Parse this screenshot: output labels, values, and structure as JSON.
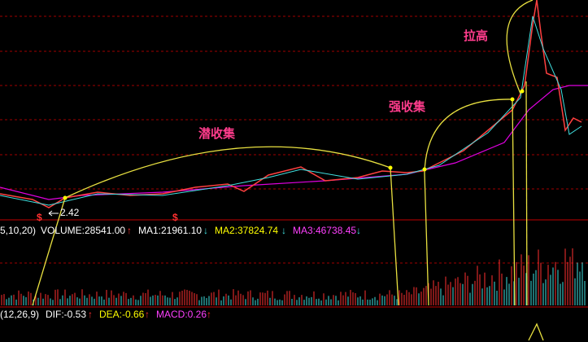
{
  "annotations": {
    "stage1": "潜收集",
    "stage2": "强收集",
    "stage3": "拉高",
    "low_marker": "2.42",
    "signal1": "$",
    "signal2": "$"
  },
  "volume_bar": {
    "params": "5,10,20)",
    "volume": "VOLUME:28541.00",
    "volume_arrow": "↑",
    "ma1": "MA1:21961.10",
    "ma1_arrow": "↓",
    "ma2": "MA2:37824.74",
    "ma2_arrow": "↓",
    "ma3": "MA3:46738.45",
    "ma3_arrow": "↓"
  },
  "macd_bar": {
    "params": "(12,26,9)",
    "dif": "DIF:-0.53",
    "dif_arrow": "↑",
    "dea": "DEA:-0.66",
    "dea_arrow": "↑",
    "macd": "MACD:0.26",
    "macd_arrow": "↑"
  }
}
